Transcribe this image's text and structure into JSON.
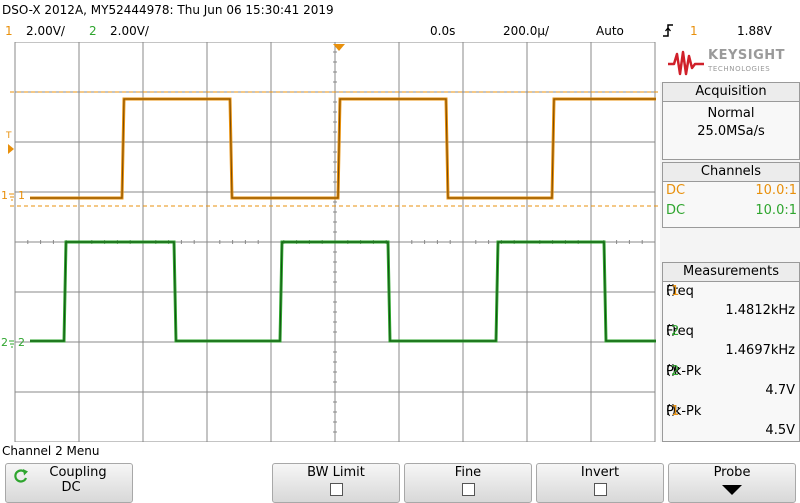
{
  "header": {
    "title": "DSO-X 2012A, MY52444978: Thu Jun 06 15:30:41 2019"
  },
  "status": {
    "ch1_num": "1",
    "ch1_scale": "2.00V/",
    "ch2_num": "2",
    "ch2_scale": "2.00V/",
    "time_delay": "0.0s",
    "timebase": "200.0µ/",
    "trigger_mode": "Auto",
    "trigger_icon": "rising-edge-icon",
    "trigger_source": "1",
    "trigger_level": "1.88V"
  },
  "waveform_markers": {
    "ch1_ground_label": "1",
    "ch2_ground_label": "2",
    "trigger_marker_label": "T"
  },
  "colors": {
    "ch1": "#e8900c",
    "ch2": "#2ea52e",
    "grid": "#888888"
  },
  "logo": {
    "brand": "KEYSIGHT",
    "sub": "TECHNOLOGIES"
  },
  "acquisition": {
    "title": "Acquisition",
    "mode": "Normal",
    "rate": "25.0MSa/s"
  },
  "channels": {
    "title": "Channels",
    "rows": [
      {
        "coupling": "DC",
        "probe": "10.0:1"
      },
      {
        "coupling": "DC",
        "probe": "10.0:1"
      }
    ]
  },
  "measurements": {
    "title": "Measurements",
    "items": [
      {
        "name": "Freq",
        "ch": "1",
        "value": "1.4812kHz"
      },
      {
        "name": "Freq",
        "ch": "2",
        "value": "1.4697kHz"
      },
      {
        "name": "Pk-Pk",
        "ch": "2",
        "value": "4.7V"
      },
      {
        "name": "Pk-Pk",
        "ch": "1",
        "value": "4.5V"
      }
    ]
  },
  "menu": {
    "title": "Channel 2 Menu",
    "coupling_label": "Coupling",
    "coupling_value": "DC",
    "bw_limit_label": "BW Limit",
    "fine_label": "Fine",
    "invert_label": "Invert",
    "probe_label": "Probe"
  }
}
